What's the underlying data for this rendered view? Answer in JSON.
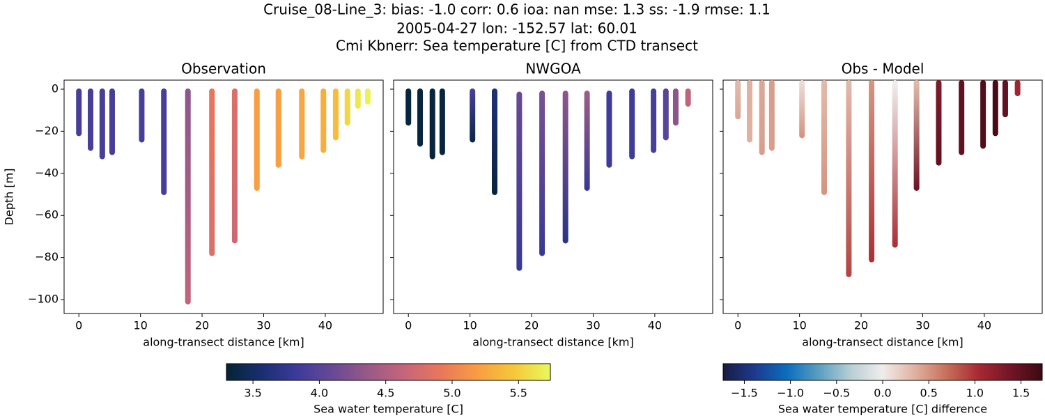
{
  "suptitle": [
    "Cruise_08-Line_3: bias: -1.0  corr: 0.6  ioa: nan  mse: 1.3  ss: -1.9  rmse: 1.1",
    "2005-04-27 lon: -152.57 lat: 60.01",
    "Cmi Kbnerr: Sea temperature [C] from CTD transect"
  ],
  "chart_data": [
    {
      "type": "scatter",
      "title": "Observation",
      "xlabel": "along-transect distance [km]",
      "ylabel": "Depth [m]",
      "xlim": [
        -2.4,
        49.4
      ],
      "ylim": [
        -106.6,
        4.3
      ],
      "xticks": [
        0,
        10,
        20,
        30,
        40
      ],
      "yticks": [
        0,
        {
          "value": -20,
          "label": "−20"
        },
        {
          "value": -40,
          "label": "−40"
        },
        {
          "value": -60,
          "label": "−60"
        },
        {
          "value": -80,
          "label": "−80"
        },
        {
          "value": -100,
          "label": "−100"
        }
      ],
      "show_ytick_labels": true,
      "x": [
        0,
        1.9,
        3.8,
        5.4,
        10.2,
        13.8,
        17.7,
        21.6,
        25.3,
        28.9,
        32.4,
        36.2,
        39.7,
        41.7,
        43.6,
        45.3,
        46.9
      ],
      "depth_top": [
        -1,
        -1,
        -1,
        -1,
        -1,
        -1,
        -1,
        -1,
        -1,
        -1,
        -1,
        -1,
        -1,
        -1,
        -1,
        -1,
        -1
      ],
      "depth_bottom": [
        -21,
        -28,
        -32,
        -30,
        -24,
        -49,
        -101,
        -78,
        -72,
        -47,
        -36,
        -32,
        -29,
        -23,
        -16,
        -8,
        -6
      ],
      "value_top": [
        3.9,
        3.9,
        3.9,
        3.9,
        3.9,
        3.9,
        4.3,
        4.9,
        4.8,
        5.2,
        5.2,
        5.25,
        5.3,
        5.4,
        5.55,
        5.65,
        5.7
      ],
      "value_bottom": [
        3.9,
        3.9,
        3.9,
        3.9,
        3.9,
        3.9,
        4.6,
        4.8,
        4.7,
        5.2,
        5.2,
        5.25,
        5.3,
        5.4,
        5.55,
        5.65,
        5.7
      ],
      "colorbar": {
        "label": "Sea water temperature [C]",
        "lim": [
          3.3,
          5.74
        ],
        "ticks": [
          3.5,
          {
            "value": 4,
            "label": "4.0"
          },
          4.5,
          {
            "value": 5,
            "label": "5.0"
          },
          5.5
        ],
        "colormap": [
          "#042333",
          "#1a2f73",
          "#3e3b9b",
          "#6a4a95",
          "#9b5b85",
          "#c8667a",
          "#ea7858",
          "#f99e42",
          "#f5c83b",
          "#e8fa5b"
        ]
      }
    },
    {
      "type": "scatter",
      "title": "NWGOA",
      "xlabel": "along-transect distance [km]",
      "xlim": [
        -2.4,
        49.4
      ],
      "ylim": [
        -106.6,
        4.3
      ],
      "xticks": [
        0,
        10,
        20,
        30,
        40
      ],
      "yticks": [
        0,
        -20,
        -40,
        -60,
        -80,
        -100
      ],
      "show_ytick_labels": false,
      "x": [
        0,
        1.9,
        3.9,
        5.5,
        10.4,
        14,
        18,
        21.7,
        25.5,
        29,
        32.6,
        36.3,
        39.8,
        41.8,
        43.4,
        45.4
      ],
      "depth_top": [
        -1,
        -1,
        -1,
        -1,
        -1,
        -1,
        -2.5,
        -2,
        -2,
        -2,
        -2,
        -1,
        -1,
        -1,
        -1,
        -1
      ],
      "depth_bottom": [
        -16,
        -26,
        -32,
        -30,
        -24,
        -49,
        -85,
        -78,
        -72,
        -47,
        -36,
        -32,
        -29,
        -23,
        -16,
        -7
      ],
      "value_top": [
        3.35,
        3.35,
        3.35,
        3.35,
        3.9,
        3.6,
        4.1,
        4.2,
        4.3,
        4.4,
        3.85,
        3.85,
        3.9,
        4.0,
        4.3,
        4.6
      ],
      "value_bottom": [
        3.35,
        3.35,
        3.35,
        3.35,
        3.4,
        3.35,
        3.8,
        3.8,
        3.7,
        3.8,
        3.85,
        3.85,
        3.9,
        4.0,
        4.3,
        4.6
      ]
    },
    {
      "type": "scatter",
      "title": "Obs - Model",
      "xlabel": "along-transect distance [km]",
      "xlim": [
        -2.4,
        49.4
      ],
      "ylim": [
        -106.6,
        4.3
      ],
      "xticks": [
        0,
        10,
        20,
        30,
        40
      ],
      "yticks": [
        0,
        -20,
        -40,
        -60,
        -80,
        -100
      ],
      "show_ytick_labels": false,
      "x": [
        0,
        1.9,
        3.9,
        5.5,
        10.4,
        14,
        18,
        21.7,
        25.5,
        29,
        32.6,
        36.3,
        39.8,
        41.8,
        43.4,
        45.4
      ],
      "depth_top": [
        3,
        3,
        3,
        3,
        3,
        3,
        3,
        3,
        3,
        3,
        3,
        3,
        3,
        3,
        3,
        3
      ],
      "depth_bottom": [
        -13,
        -24,
        -30,
        -28,
        -22,
        -49,
        -88,
        -81,
        -74,
        -47,
        -35,
        -30,
        -27,
        -21,
        -12,
        -2
      ],
      "value_top": [
        0.3,
        0.35,
        0.4,
        0.45,
        0.1,
        0.3,
        0.3,
        0.5,
        0.0,
        0.3,
        1.3,
        1.5,
        1.6,
        1.65,
        1.5,
        1.1
      ],
      "value_bottom": [
        0.4,
        0.35,
        0.45,
        0.45,
        0.5,
        0.5,
        0.9,
        1.0,
        1.0,
        1.4,
        1.5,
        1.5,
        1.6,
        1.65,
        1.5,
        1.1
      ],
      "colorbar": {
        "label": "Sea water temperature [C] difference",
        "lim": [
          -1.73,
          1.73
        ],
        "ticks": [
          {
            "value": -1.5,
            "label": "−1.5"
          },
          {
            "value": -1,
            "label": "−1.0"
          },
          {
            "value": -0.5,
            "label": "−0.5"
          },
          {
            "value": 0,
            "label": "0.0"
          },
          0.5,
          {
            "value": 1,
            "label": "1.0"
          },
          1.5
        ],
        "colormap": [
          "#181c43",
          "#1d3a8f",
          "#0b6ebd",
          "#5a9fc0",
          "#b7cfd4",
          "#f1ecec",
          "#dfb2a1",
          "#c7705a",
          "#a82932",
          "#731526",
          "#3c0912"
        ]
      }
    }
  ]
}
